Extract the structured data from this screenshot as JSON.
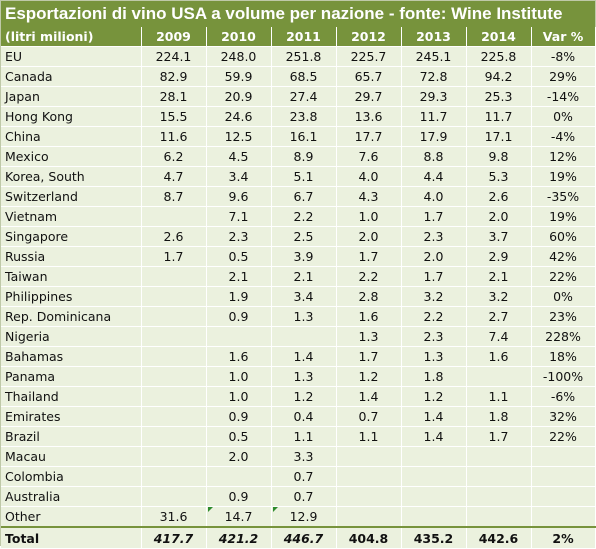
{
  "title": "Esportazioni di vino USA a volume per nazione - fonte: Wine Institute",
  "header": [
    "(litri milioni)",
    "2009",
    "2010",
    "2011",
    "2012",
    "2013",
    "2014",
    "Var %"
  ],
  "rows": [
    {
      "name": "EU",
      "v": [
        "224.1",
        "248.0",
        "251.8",
        "225.7",
        "245.1",
        "225.8",
        "-8%"
      ]
    },
    {
      "name": "Canada",
      "v": [
        "82.9",
        "59.9",
        "68.5",
        "65.7",
        "72.8",
        "94.2",
        "29%"
      ]
    },
    {
      "name": "Japan",
      "v": [
        "28.1",
        "20.9",
        "27.4",
        "29.7",
        "29.3",
        "25.3",
        "-14%"
      ]
    },
    {
      "name": "Hong Kong",
      "v": [
        "15.5",
        "24.6",
        "23.8",
        "13.6",
        "11.7",
        "11.7",
        "0%"
      ]
    },
    {
      "name": "China",
      "v": [
        "11.6",
        "12.5",
        "16.1",
        "17.7",
        "17.9",
        "17.1",
        "-4%"
      ]
    },
    {
      "name": "Mexico",
      "v": [
        "6.2",
        "4.5",
        "8.9",
        "7.6",
        "8.8",
        "9.8",
        "12%"
      ]
    },
    {
      "name": "Korea, South",
      "v": [
        "4.7",
        "3.4",
        "5.1",
        "4.0",
        "4.4",
        "5.3",
        "19%"
      ]
    },
    {
      "name": "Switzerland",
      "v": [
        "8.7",
        "9.6",
        "6.7",
        "4.3",
        "4.0",
        "2.6",
        "-35%"
      ]
    },
    {
      "name": "Vietnam",
      "v": [
        "",
        "7.1",
        "2.2",
        "1.0",
        "1.7",
        "2.0",
        "19%"
      ]
    },
    {
      "name": "Singapore",
      "v": [
        "2.6",
        "2.3",
        "2.5",
        "2.0",
        "2.3",
        "3.7",
        "60%"
      ]
    },
    {
      "name": "Russia",
      "v": [
        "1.7",
        "0.5",
        "3.9",
        "1.7",
        "2.0",
        "2.9",
        "42%"
      ]
    },
    {
      "name": "Taiwan",
      "v": [
        "",
        "2.1",
        "2.1",
        "2.2",
        "1.7",
        "2.1",
        "22%"
      ]
    },
    {
      "name": "Philippines",
      "v": [
        "",
        "1.9",
        "3.4",
        "2.8",
        "3.2",
        "3.2",
        "0%"
      ]
    },
    {
      "name": "Rep. Dominicana",
      "v": [
        "",
        "0.9",
        "1.3",
        "1.6",
        "2.2",
        "2.7",
        "23%"
      ]
    },
    {
      "name": "Nigeria",
      "v": [
        "",
        "",
        "",
        "1.3",
        "2.3",
        "7.4",
        "228%"
      ]
    },
    {
      "name": "Bahamas",
      "v": [
        "",
        "1.6",
        "1.4",
        "1.7",
        "1.3",
        "1.6",
        "18%"
      ]
    },
    {
      "name": "Panama",
      "v": [
        "",
        "1.0",
        "1.3",
        "1.2",
        "1.8",
        "",
        "-100%"
      ]
    },
    {
      "name": "Thailand",
      "v": [
        "",
        "1.0",
        "1.2",
        "1.4",
        "1.2",
        "1.1",
        "-6%"
      ]
    },
    {
      "name": "Emirates",
      "v": [
        "",
        "0.9",
        "0.4",
        "0.7",
        "1.4",
        "1.8",
        "32%"
      ]
    },
    {
      "name": "Brazil",
      "v": [
        "",
        "0.5",
        "1.1",
        "1.1",
        "1.4",
        "1.7",
        "22%"
      ]
    },
    {
      "name": "Macau",
      "v": [
        "",
        "2.0",
        "3.3",
        "",
        "",
        "",
        ""
      ]
    },
    {
      "name": "Colombia",
      "v": [
        "",
        "",
        "0.7",
        "",
        "",
        "",
        ""
      ]
    },
    {
      "name": "Australia",
      "v": [
        "",
        "0.9",
        "0.7",
        "",
        "",
        "",
        ""
      ]
    },
    {
      "name": "Other",
      "v": [
        "31.6",
        "14.7",
        "12.9",
        "",
        "",
        "",
        ""
      ]
    }
  ],
  "total": {
    "name": "Total",
    "v": [
      "417.7",
      "421.2",
      "446.7",
      "404.8",
      "435.2",
      "442.6",
      "2%"
    ]
  },
  "colors": {
    "header_bg": "#77933c",
    "cell_bg": "#ebf1de",
    "error_flag": "#2e8b2e"
  }
}
